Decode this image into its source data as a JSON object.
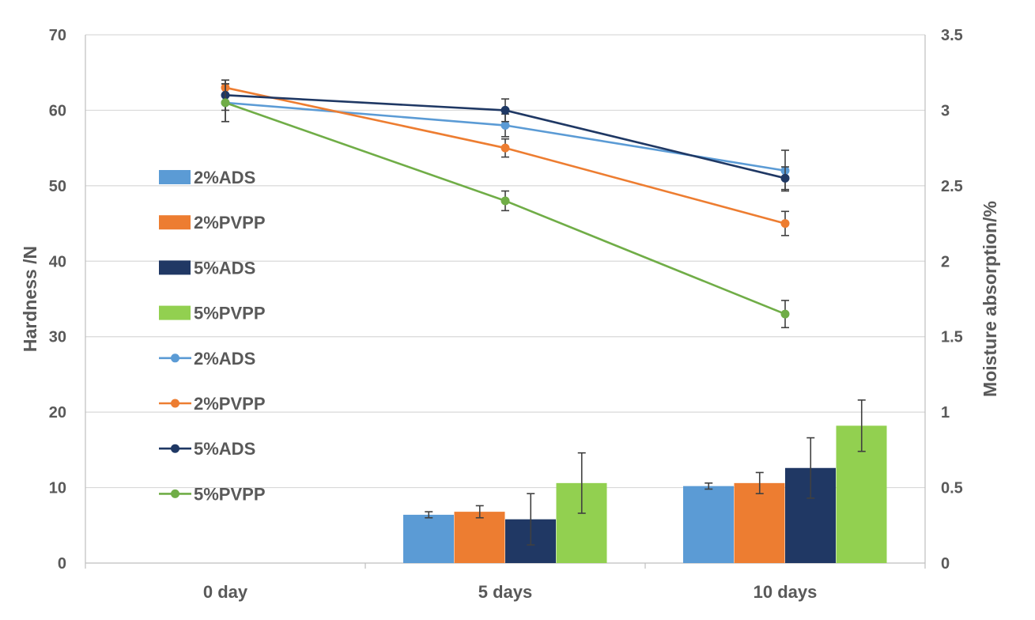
{
  "chart_data": {
    "type": "bar+line",
    "categories": [
      "0 day",
      "5 days",
      "10 days"
    ],
    "y_left": {
      "label": "Hardness /N",
      "min": 0,
      "max": 70,
      "ticks": [
        "0",
        "10",
        "20",
        "30",
        "40",
        "50",
        "60",
        "70"
      ]
    },
    "y_right": {
      "label": "Moisture absorption/%",
      "min": 0,
      "max": 3.5,
      "ticks": [
        "0",
        "0.5",
        "1",
        "1.5",
        "2",
        "2.5",
        "3",
        "3.5"
      ]
    },
    "grid": true,
    "legend_position": "left-inside",
    "bar_series": [
      {
        "name": "2%ADS",
        "color": "#5b9bd5",
        "values": [
          null,
          0.32,
          0.51
        ],
        "errors": [
          null,
          0.02,
          0.02
        ]
      },
      {
        "name": "2%PVPP",
        "color": "#ed7d31",
        "values": [
          null,
          0.34,
          0.53
        ],
        "errors": [
          null,
          0.04,
          0.07
        ]
      },
      {
        "name": "5%ADS",
        "color": "#203864",
        "values": [
          null,
          0.29,
          0.63
        ],
        "errors": [
          null,
          0.17,
          0.2
        ]
      },
      {
        "name": "5%PVPP",
        "color": "#92d050",
        "values": [
          null,
          0.53,
          0.91
        ],
        "errors": [
          null,
          0.2,
          0.17
        ]
      }
    ],
    "line_series": [
      {
        "name": "2%ADS",
        "color": "#5b9bd5",
        "values": [
          61,
          58,
          52
        ],
        "errors": [
          2.5,
          1.5,
          2.7
        ]
      },
      {
        "name": "2%PVPP",
        "color": "#ed7d31",
        "values": [
          63,
          55,
          45
        ],
        "errors": [
          1,
          1.2,
          1.6
        ]
      },
      {
        "name": "5%ADS",
        "color": "#1f3864",
        "values": [
          62,
          60,
          51
        ],
        "errors": [
          2,
          1.5,
          1.5
        ]
      },
      {
        "name": "5%PVPP",
        "color": "#70ad47",
        "values": [
          61,
          48,
          33
        ],
        "errors": [
          2.5,
          1.3,
          1.8
        ]
      }
    ]
  }
}
